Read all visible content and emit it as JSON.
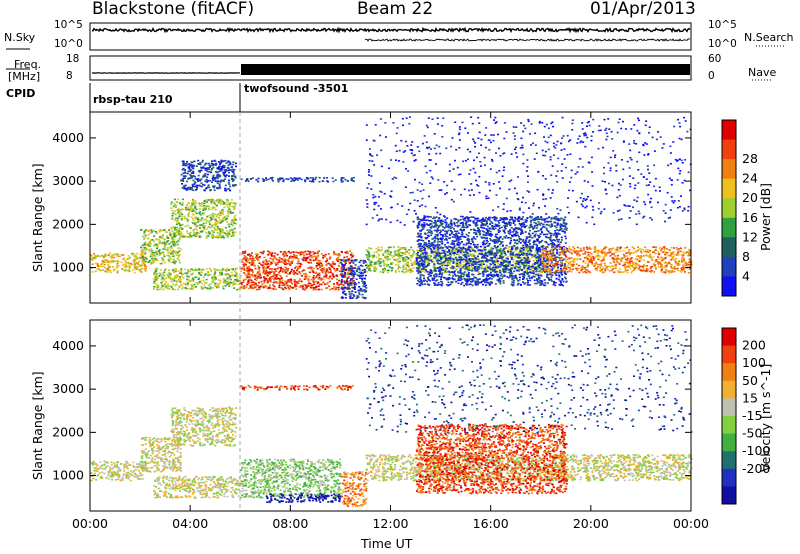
{
  "header": {
    "radar_title": "Blackstone (fitACF)",
    "beam": "Beam 22",
    "date": "01/Apr/2013"
  },
  "top_panels": {
    "nsky_label": "N.Sky",
    "nsky_ticks": [
      "10^5",
      "10^0"
    ],
    "nsearch_label": "N.Search",
    "nsearch_ticks": [
      "10^5",
      "10^0"
    ],
    "freq_label": "Freq.",
    "freq_unit": "[MHz]",
    "freq_ticks": [
      "18",
      "8"
    ],
    "nave_label": "Nave",
    "nave_ticks": [
      "60",
      "0"
    ],
    "cpid_label": "CPID",
    "cpid_segments": [
      {
        "name": "rbsp-tau 210",
        "start_hour": 0
      },
      {
        "name": "twofsound -3501",
        "start_hour": 6
      }
    ]
  },
  "chart_data": [
    {
      "type": "heatmap",
      "title": "",
      "xlabel": "Time UT",
      "ylabel": "Slant Range [km]",
      "x_ticks": [
        "00:00",
        "04:00",
        "08:00",
        "12:00",
        "16:00",
        "20:00",
        "00:00"
      ],
      "xlim_hours": [
        0,
        24
      ],
      "ylim": [
        180,
        4600
      ],
      "y_ticks": [
        "1000",
        "2000",
        "3000",
        "4000"
      ],
      "colorbar": {
        "label": "Power [dB]",
        "ticks": [
          "4",
          "8",
          "12",
          "16",
          "20",
          "24",
          "28"
        ],
        "colors": [
          "#1010f0",
          "#2040c0",
          "#206060",
          "#30a040",
          "#a0d030",
          "#f0c020",
          "#f08010",
          "#f04010",
          "#e00000"
        ]
      },
      "regions": [
        {
          "t0": 0.0,
          "t1": 2.2,
          "r0": 900,
          "r1": 1350,
          "level": 5
        },
        {
          "t0": 2.0,
          "t1": 3.6,
          "r0": 1100,
          "r1": 1900,
          "level": 4
        },
        {
          "t0": 3.2,
          "t1": 5.8,
          "r0": 1700,
          "r1": 2600,
          "level": 4
        },
        {
          "t0": 3.6,
          "t1": 5.8,
          "r0": 2800,
          "r1": 3500,
          "level": 1
        },
        {
          "t0": 2.5,
          "t1": 6.0,
          "r0": 500,
          "r1": 1000,
          "level": 4
        },
        {
          "t0": 6.0,
          "t1": 10.5,
          "r0": 500,
          "r1": 1400,
          "level": 7
        },
        {
          "t0": 6.0,
          "t1": 10.5,
          "r0": 3000,
          "r1": 3100,
          "level": 1
        },
        {
          "t0": 10.0,
          "t1": 11.0,
          "r0": 300,
          "r1": 1200,
          "level": 1
        },
        {
          "t0": 11.0,
          "t1": 18.0,
          "r0": 900,
          "r1": 1500,
          "level": 4
        },
        {
          "t0": 13.0,
          "t1": 19.0,
          "r0": 600,
          "r1": 2200,
          "level": 1
        },
        {
          "t0": 18.0,
          "t1": 24.0,
          "r0": 900,
          "r1": 1500,
          "level": 6
        },
        {
          "t0": 11.0,
          "t1": 24.0,
          "r0": 2000,
          "r1": 4500,
          "level": 0,
          "sparse": true
        }
      ]
    },
    {
      "type": "heatmap",
      "title": "",
      "xlabel": "Time UT",
      "ylabel": "Slant Range [km]",
      "x_ticks": [
        "00:00",
        "04:00",
        "08:00",
        "12:00",
        "16:00",
        "20:00",
        "00:00"
      ],
      "xlim_hours": [
        0,
        24
      ],
      "ylim": [
        180,
        4600
      ],
      "y_ticks": [
        "1000",
        "2000",
        "3000",
        "4000"
      ],
      "colorbar": {
        "label": "Velocity [m s^-1]",
        "ticks": [
          "200",
          "100",
          "50",
          "15",
          "-15",
          "-50",
          "-100",
          "-200"
        ],
        "colors": [
          "#1010a0",
          "#2030c0",
          "#207070",
          "#40b040",
          "#80d040",
          "#c0c0b0",
          "#f0b030",
          "#f08010",
          "#f04010",
          "#e00000"
        ]
      },
      "regions": [
        {
          "t0": 0.0,
          "t1": 2.2,
          "r0": 900,
          "r1": 1350,
          "level": 5
        },
        {
          "t0": 2.0,
          "t1": 3.6,
          "r0": 1100,
          "r1": 1900,
          "level": 5
        },
        {
          "t0": 3.2,
          "t1": 5.8,
          "r0": 1700,
          "r1": 2600,
          "level": 5
        },
        {
          "t0": 2.5,
          "t1": 6.0,
          "r0": 500,
          "r1": 1000,
          "level": 5
        },
        {
          "t0": 6.0,
          "t1": 10.0,
          "r0": 500,
          "r1": 1400,
          "level": 4
        },
        {
          "t0": 7.0,
          "t1": 10.0,
          "r0": 400,
          "r1": 600,
          "level": 0
        },
        {
          "t0": 10.0,
          "t1": 11.0,
          "r0": 300,
          "r1": 1100,
          "level": 7
        },
        {
          "t0": 6.0,
          "t1": 10.5,
          "r0": 3000,
          "r1": 3100,
          "level": 8
        },
        {
          "t0": 11.0,
          "t1": 24.0,
          "r0": 900,
          "r1": 1500,
          "level": 5
        },
        {
          "t0": 13.0,
          "t1": 19.0,
          "r0": 600,
          "r1": 2200,
          "level": 8
        },
        {
          "t0": 11.0,
          "t1": 24.0,
          "r0": 2000,
          "r1": 4500,
          "level": 1,
          "sparse": true
        }
      ]
    }
  ]
}
